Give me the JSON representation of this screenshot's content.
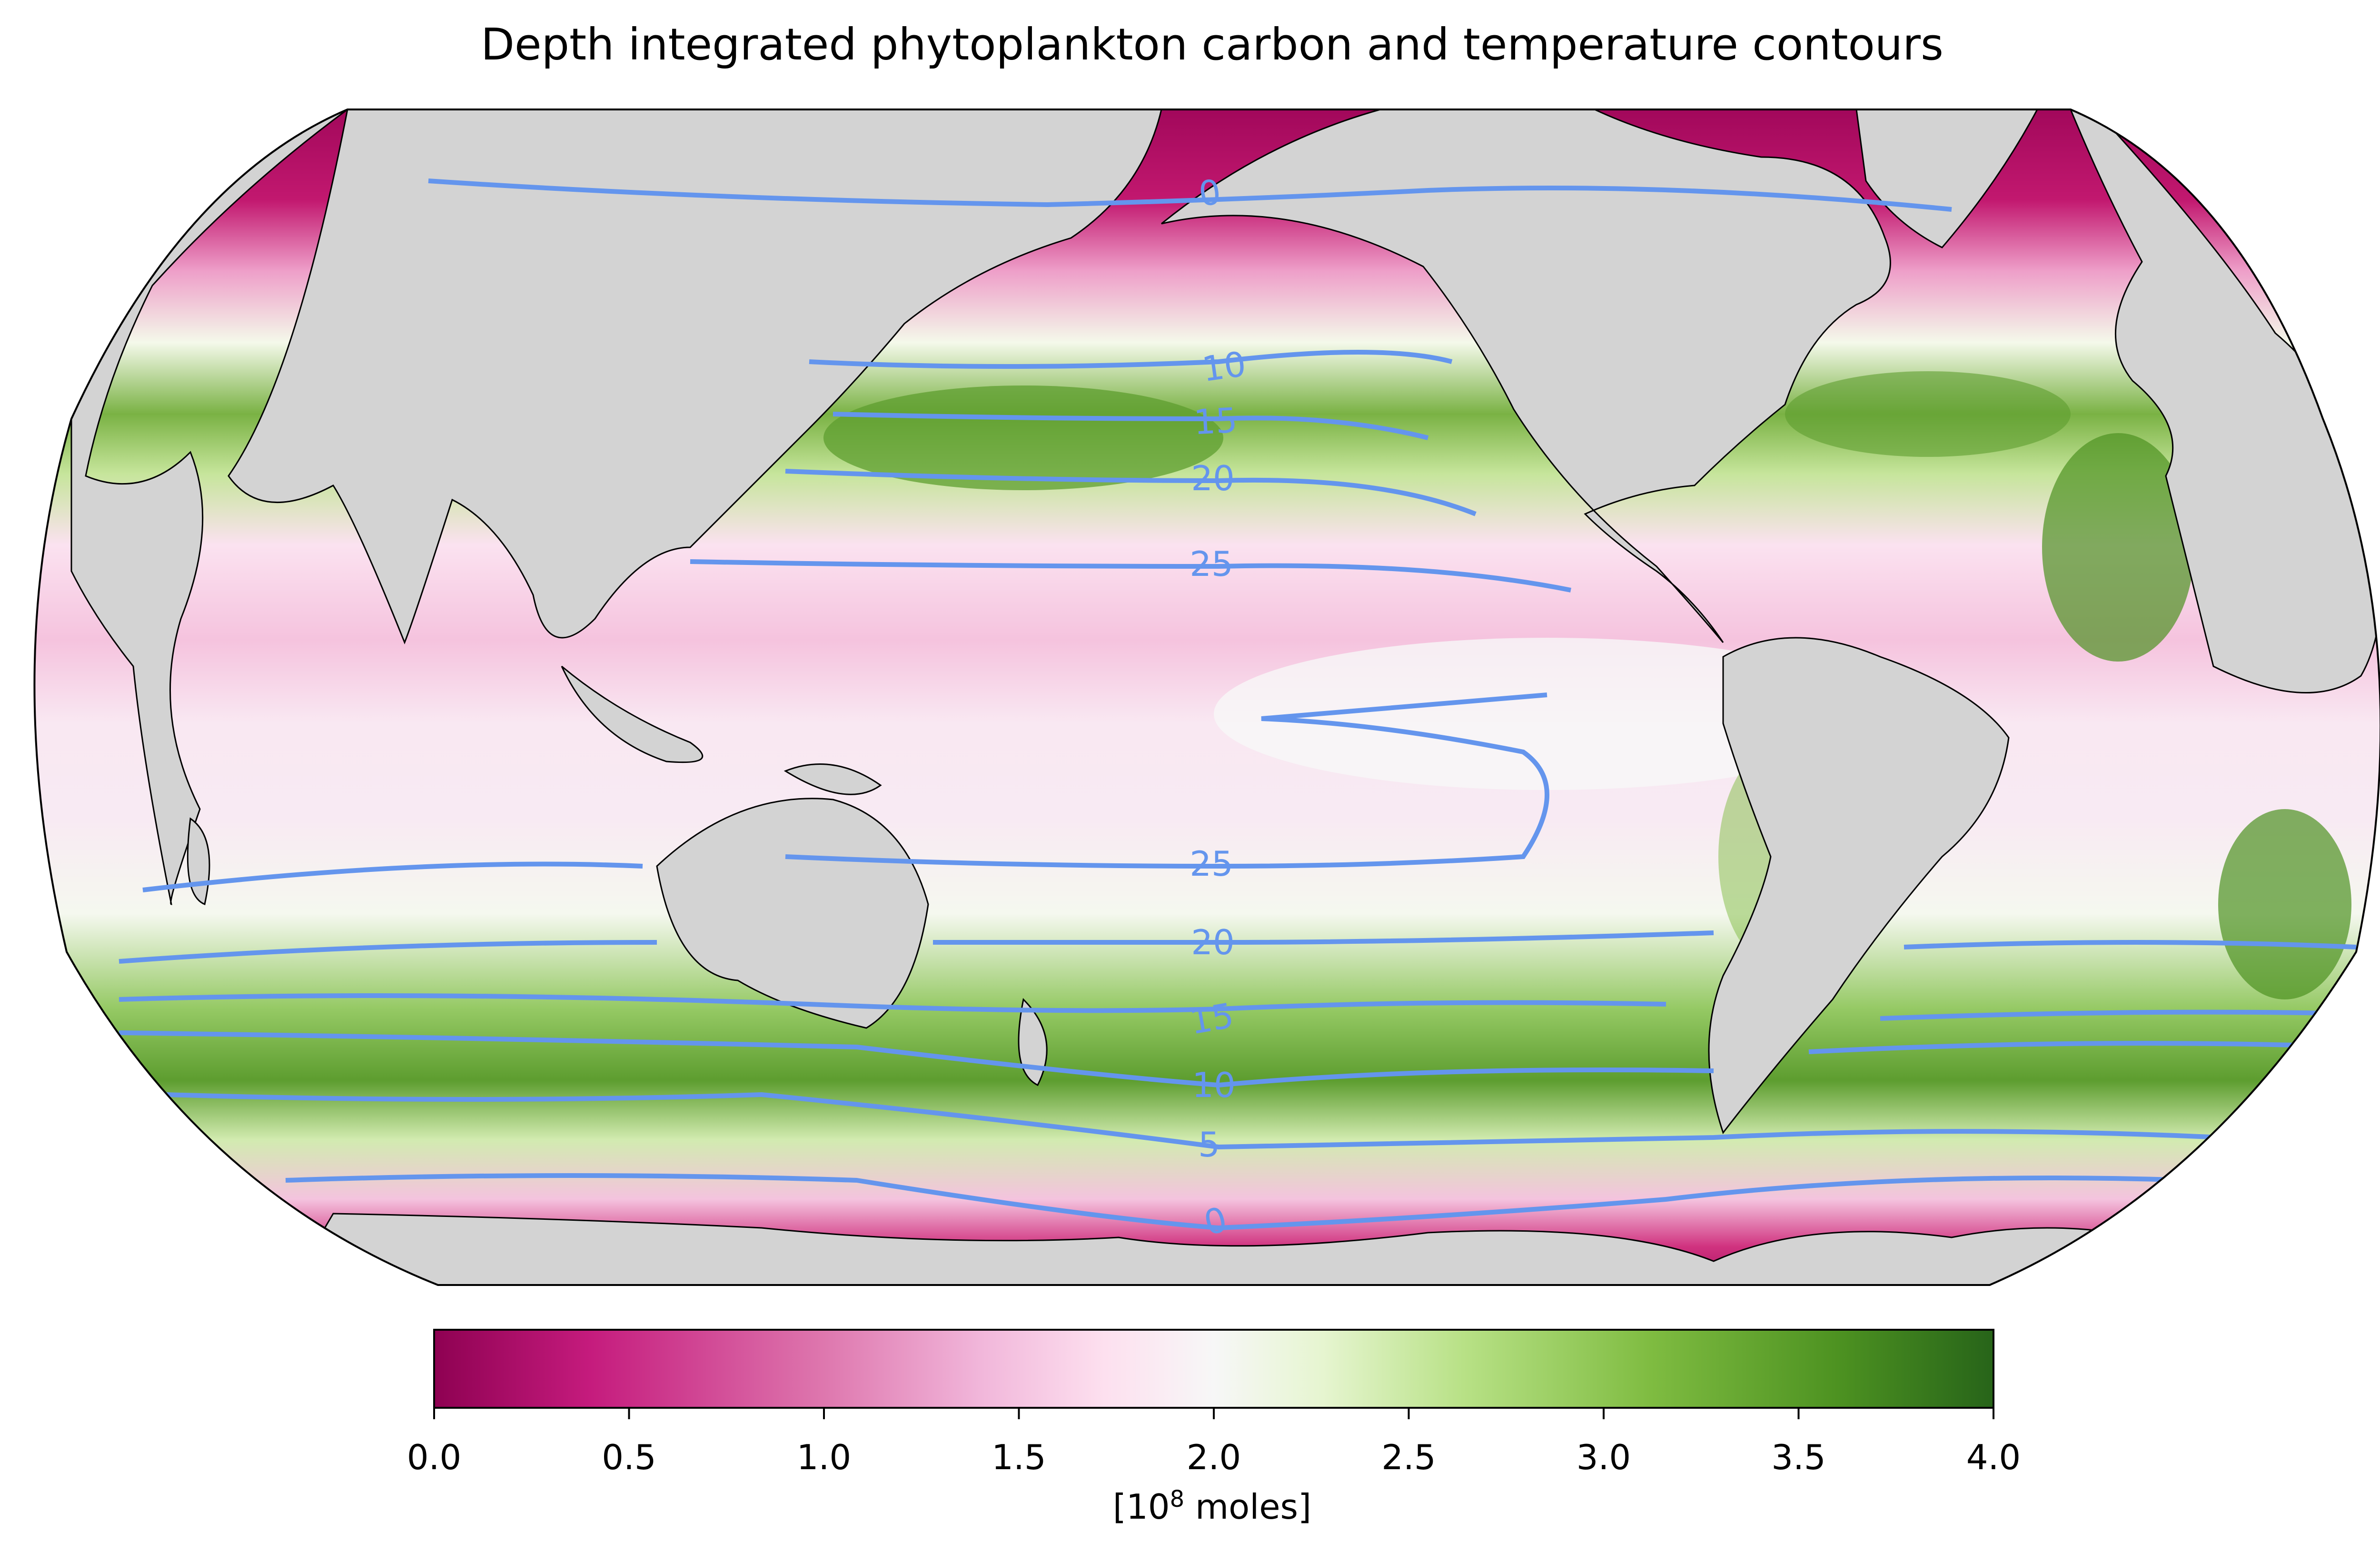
{
  "title": "Depth integrated phytoplankton carbon and temperature contours",
  "colorbar": {
    "label_prefix": "[10",
    "label_exponent": "8",
    "label_suffix": " moles]",
    "ticks": [
      "0.0",
      "0.5",
      "1.0",
      "1.5",
      "2.0",
      "2.5",
      "3.0",
      "3.5",
      "4.0"
    ],
    "range": [
      0,
      4
    ],
    "colormap": [
      "#8e0152",
      "#c51b7d",
      "#de77ae",
      "#f1b6da",
      "#fde0ef",
      "#f7f7f7",
      "#e6f5d0",
      "#b8e186",
      "#7fbc41",
      "#4d9221",
      "#276419"
    ]
  },
  "contours": {
    "color": "#6495ed",
    "labels": [
      "0",
      "10",
      "15",
      "20",
      "25",
      "25",
      "20",
      "15",
      "10",
      "5",
      "0"
    ]
  },
  "colors": {
    "land": "#d3d3d3",
    "coastline": "#000000",
    "contour": "#6495ed"
  },
  "projection": "Robinson"
}
